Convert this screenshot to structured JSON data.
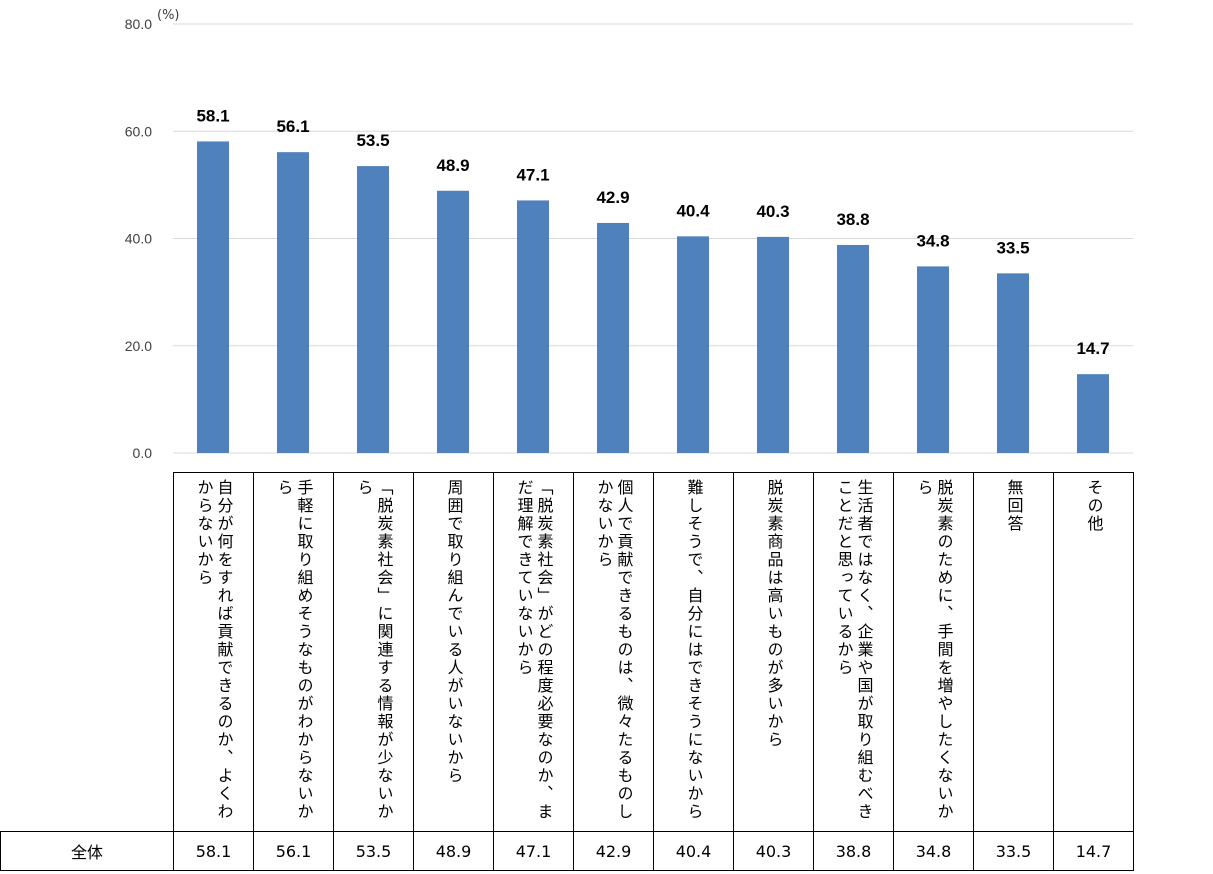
{
  "chart_data": {
    "type": "bar",
    "unit": "(%)",
    "ylim": [
      0,
      80
    ],
    "yticks": [
      "0.0",
      "20.0",
      "40.0",
      "60.0",
      "80.0"
    ],
    "grid": true,
    "bar_color": "#4F81BD",
    "series": [
      {
        "name": "全体",
        "values": [
          58.1,
          56.1,
          53.5,
          48.9,
          47.1,
          42.9,
          40.4,
          40.3,
          38.8,
          34.8,
          33.5,
          14.7
        ]
      }
    ],
    "categories": [
      "自分が何をすれば貢献できるのか、よくわからないから",
      "手軽に取り組めそうなものがわからないから",
      "「脱炭素社会」に関連する情報が少ないから",
      "周囲で取り組んでいる人がいないから",
      "「脱炭素社会」がどの程度必要なのか、まだ理解できていないから",
      "個人で貢献できるものは、微々たるものしかないから",
      "難しそうで、自分にはできそうにないから",
      "脱炭素商品は高いものが多いから",
      "生活者ではなく、企業や国が取り組むべきことだと思っているから",
      "脱炭素のために、手間を増やしたくないから",
      "無回答",
      "その他"
    ],
    "data_labels": [
      "58.1",
      "56.1",
      "53.5",
      "48.9",
      "47.1",
      "42.9",
      "40.4",
      "40.3",
      "38.8",
      "34.8",
      "33.5",
      "14.7"
    ]
  },
  "table": {
    "row_label": "全体",
    "values": [
      "58.1",
      "56.1",
      "53.5",
      "48.9",
      "47.1",
      "42.9",
      "40.4",
      "40.3",
      "38.8",
      "34.8",
      "33.5",
      "14.7"
    ]
  }
}
